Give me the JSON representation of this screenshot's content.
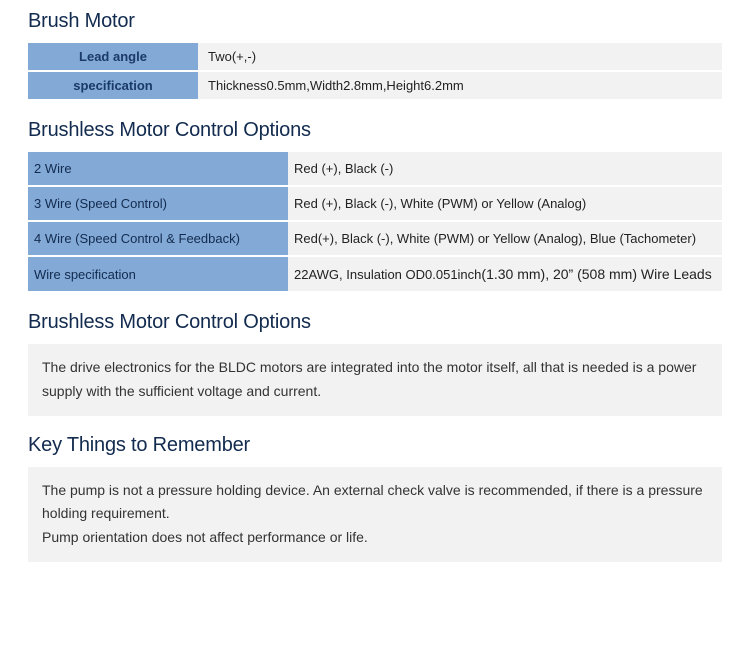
{
  "sections": {
    "brush": {
      "title": "Brush Motor",
      "rows": [
        {
          "label": "Lead angle",
          "value": "Two(+,-)"
        },
        {
          "label": "specification",
          "value": "Thickness0.5mm,Width2.8mm,Height6.2mm"
        }
      ]
    },
    "bldcOptions": {
      "title": "Brushless Motor Control Options",
      "rows": [
        {
          "key": "2 Wire",
          "value": "Red (+), Black (-)"
        },
        {
          "key": "3 Wire (Speed Control)",
          "value": "Red (+), Black (-), White (PWM) or Yellow (Analog)"
        },
        {
          "key": "4 Wire (Speed Control & Feedback)",
          "value": "Red(+), Black (-), White (PWM) or Yellow (Analog), Blue (Tachometer)"
        },
        {
          "key": "Wire specification",
          "value_prefix": "22AWG, Insulation OD0.051inch",
          "value_suffix": "(1.30 mm), 20” (508 mm) Wire Leads"
        }
      ]
    },
    "bldcNote": {
      "title": "Brushless Motor Control Options",
      "text": "The drive electronics for the BLDC motors are integrated into the motor itself, all that is needed is a power supply with the sufficient voltage and current."
    },
    "keyThings": {
      "title": "Key Things to Remember",
      "line1": "The pump is not a pressure holding device. An external check valve is recommended, if there is a pressure holding requirement.",
      "line2": "Pump orientation does not affect performance or life."
    }
  },
  "colors": {
    "headingText": "#122b4f",
    "labelBg": "#83a9d6",
    "valueBg": "#f2f2f2",
    "textBlockBg": "#f2f2f2",
    "pageBg": "#ffffff"
  },
  "typography": {
    "headingFontSize": 20,
    "tableFontSize": 13,
    "bodyFontSize": 14,
    "fontFamily": "Segoe UI"
  },
  "layout": {
    "pageWidth": 750,
    "pageHeight": 668,
    "paddingX": 28,
    "t1LabelWidth": 170,
    "t2KeyWidth": 260
  }
}
